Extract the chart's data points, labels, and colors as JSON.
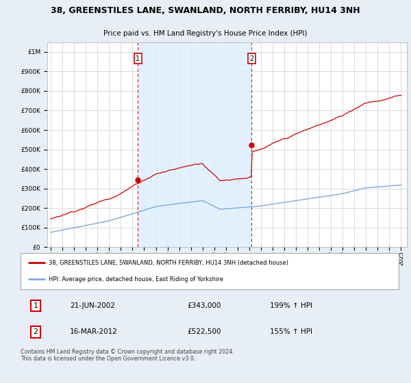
{
  "title": "38, GREENSTILES LANE, SWANLAND, NORTH FERRIBY, HU14 3NH",
  "subtitle": "Price paid vs. HM Land Registry's House Price Index (HPI)",
  "legend_line1": "38, GREENSTILES LANE, SWANLAND, NORTH FERRIBY, HU14 3NH (detached house)",
  "legend_line2": "HPI: Average price, detached house, East Riding of Yorkshire",
  "footnote": "Contains HM Land Registry data © Crown copyright and database right 2024.\nThis data is licensed under the Open Government Licence v3.0.",
  "transaction1_label": "1",
  "transaction1_date": "21-JUN-2002",
  "transaction1_price": "£343,000",
  "transaction1_hpi": "199% ↑ HPI",
  "transaction2_label": "2",
  "transaction2_date": "16-MAR-2012",
  "transaction2_price": "£522,500",
  "transaction2_hpi": "155% ↑ HPI",
  "hpi_color": "#7aaadd",
  "property_color": "#cc0000",
  "shade_color": "#ddeeff",
  "marker1_x": 2002.47,
  "marker1_y": 343000,
  "marker2_x": 2012.21,
  "marker2_y": 522500,
  "vline1_x": 2002.47,
  "vline2_x": 2012.21,
  "ylim": [
    0,
    1050000
  ],
  "xlim": [
    1994.7,
    2025.5
  ],
  "background_color": "#e8eef8",
  "plot_bg_color": "#ffffff",
  "yticks": [
    0,
    100000,
    200000,
    300000,
    400000,
    500000,
    600000,
    700000,
    800000,
    900000,
    1000000
  ],
  "ytick_labels": [
    "£0",
    "£100K",
    "£200K",
    "£300K",
    "£400K",
    "£500K",
    "£600K",
    "£700K",
    "£800K",
    "£900K",
    "£1M"
  ],
  "xticks": [
    1995,
    1996,
    1997,
    1998,
    1999,
    2000,
    2001,
    2002,
    2003,
    2004,
    2005,
    2006,
    2007,
    2008,
    2009,
    2010,
    2011,
    2012,
    2013,
    2014,
    2015,
    2016,
    2017,
    2018,
    2019,
    2020,
    2021,
    2022,
    2023,
    2024,
    2025
  ]
}
